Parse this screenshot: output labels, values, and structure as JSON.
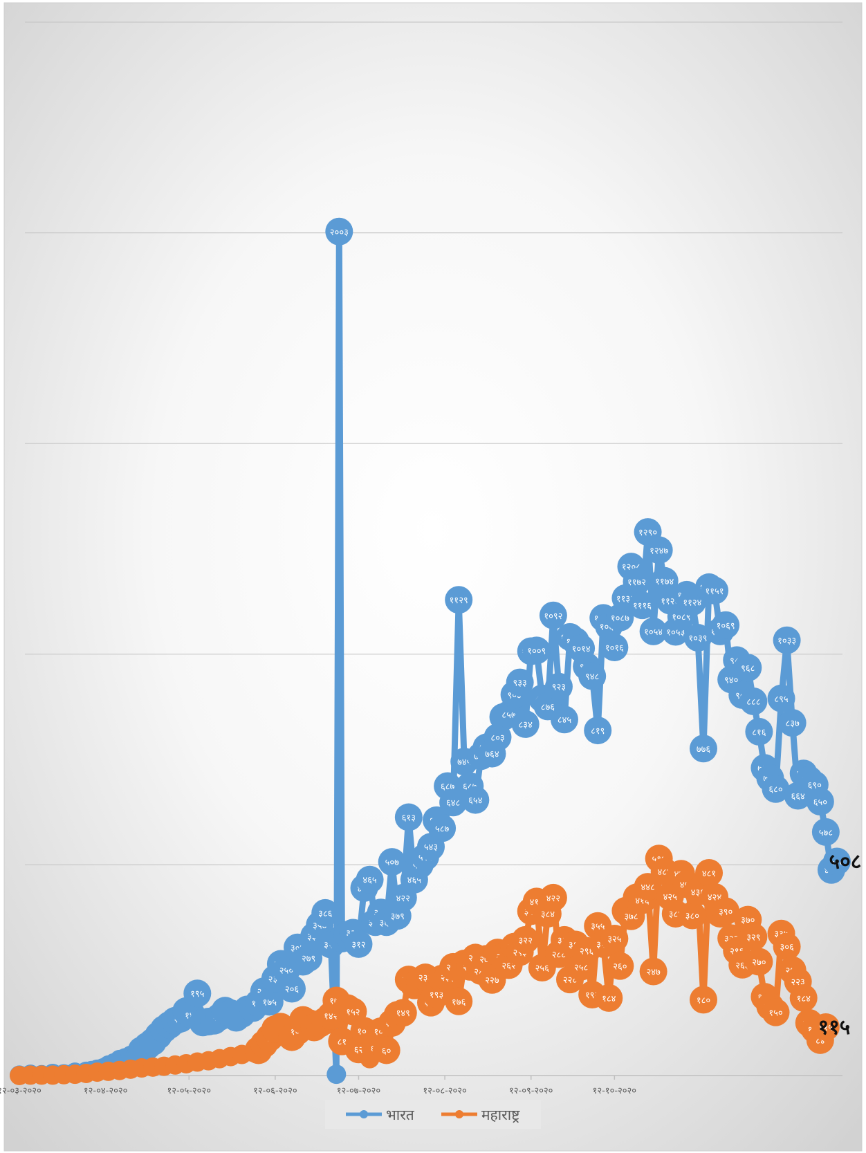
{
  "chart_data": {
    "type": "line",
    "title": "",
    "xlabel": "",
    "ylabel": "",
    "ylim": [
      0,
      2500
    ],
    "x_ticks": [
      "१२-०३-२०२०",
      "१२-०४-२०२०",
      "१२-०५-२०२०",
      "१२-०६-२०२०",
      "१२-०७-२०२०",
      "१२-०८-२०२०",
      "१२-०९-२०२०",
      "१२-१०-२०२०"
    ],
    "grid": true,
    "legend_position": "bottom",
    "series": [
      {
        "name": "भारत",
        "color": "#5b9bd5",
        "points": [
          [
            0,
            1
          ],
          [
            4,
            3
          ],
          [
            8,
            2
          ],
          [
            12,
            5
          ],
          [
            16,
            4
          ],
          [
            20,
            8
          ],
          [
            24,
            10
          ],
          [
            26,
            12
          ],
          [
            28,
            15
          ],
          [
            30,
            18
          ],
          [
            32,
            25
          ],
          [
            34,
            30
          ],
          [
            36,
            38
          ],
          [
            38,
            42
          ],
          [
            40,
            48
          ],
          [
            42,
            55
          ],
          [
            44,
            60
          ],
          [
            46,
            70
          ],
          [
            48,
            80
          ],
          [
            50,
            95
          ],
          [
            52,
            110
          ],
          [
            54,
            120
          ],
          [
            56,
            130
          ],
          [
            58,
            135
          ],
          [
            60,
            153
          ],
          [
            62,
            144
          ],
          [
            64,
            195
          ],
          [
            66,
            126
          ],
          [
            68,
            128
          ],
          [
            70,
            130
          ],
          [
            72,
            139
          ],
          [
            74,
            154
          ],
          [
            76,
            148
          ],
          [
            78,
            137
          ],
          [
            80,
            146
          ],
          [
            82,
            157
          ],
          [
            84,
            160
          ],
          [
            86,
            172
          ],
          [
            88,
            200
          ],
          [
            90,
            175
          ],
          [
            92,
            230
          ],
          [
            94,
            265
          ],
          [
            96,
            250
          ],
          [
            98,
            206
          ],
          [
            100,
            304
          ],
          [
            102,
            270
          ],
          [
            104,
            279
          ],
          [
            106,
            331
          ],
          [
            108,
            357
          ],
          [
            110,
            386
          ],
          [
            112,
            311
          ],
          [
            114,
            3
          ],
          [
            115,
            2003
          ],
          [
            116,
            325
          ],
          [
            118,
            334
          ],
          [
            120,
            339
          ],
          [
            122,
            312
          ],
          [
            124,
            445
          ],
          [
            126,
            465
          ],
          [
            128,
            364
          ],
          [
            130,
            387
          ],
          [
            132,
            364
          ],
          [
            134,
            507
          ],
          [
            136,
            379
          ],
          [
            138,
            422
          ],
          [
            140,
            613
          ],
          [
            142,
            465
          ],
          [
            144,
            500
          ],
          [
            146,
            519
          ],
          [
            148,
            543
          ],
          [
            150,
            606
          ],
          [
            152,
            587
          ],
          [
            154,
            687
          ],
          [
            156,
            648
          ],
          [
            158,
            1129
          ],
          [
            160,
            745
          ],
          [
            162,
            687
          ],
          [
            164,
            654
          ],
          [
            166,
            758
          ],
          [
            168,
            779
          ],
          [
            170,
            764
          ],
          [
            172,
            803
          ],
          [
            174,
            851
          ],
          [
            176,
            857
          ],
          [
            178,
            904
          ],
          [
            180,
            933
          ],
          [
            182,
            834
          ],
          [
            184,
            1007
          ],
          [
            186,
            1009
          ],
          [
            188,
            895
          ],
          [
            190,
            876
          ],
          [
            192,
            1092
          ],
          [
            194,
            923
          ],
          [
            196,
            845
          ],
          [
            198,
            1041
          ],
          [
            200,
            1031
          ],
          [
            202,
            1014
          ],
          [
            204,
            971
          ],
          [
            206,
            948
          ],
          [
            208,
            819
          ],
          [
            210,
            1086
          ],
          [
            212,
            1066
          ],
          [
            214,
            1016
          ],
          [
            216,
            1087
          ],
          [
            218,
            1133
          ],
          [
            220,
            1208
          ],
          [
            222,
            1172
          ],
          [
            224,
            1116
          ],
          [
            226,
            1290
          ],
          [
            228,
            1054
          ],
          [
            230,
            1247
          ],
          [
            232,
            1174
          ],
          [
            234,
            1127
          ],
          [
            236,
            1053
          ],
          [
            238,
            1089
          ],
          [
            240,
            1141
          ],
          [
            242,
            1124
          ],
          [
            244,
            1039
          ],
          [
            246,
            776
          ],
          [
            248,
            1159
          ],
          [
            250,
            1151
          ],
          [
            252,
            1054
          ],
          [
            254,
            1069
          ],
          [
            256,
            940
          ],
          [
            258,
            986
          ],
          [
            260,
            903
          ],
          [
            262,
            968
          ],
          [
            264,
            888
          ],
          [
            266,
            816
          ],
          [
            268,
            730
          ],
          [
            270,
            706
          ],
          [
            272,
            680
          ],
          [
            274,
            895
          ],
          [
            276,
            1033
          ],
          [
            278,
            837
          ],
          [
            280,
            664
          ],
          [
            282,
            717
          ],
          [
            284,
            702
          ],
          [
            286,
            690
          ],
          [
            288,
            650
          ],
          [
            290,
            578
          ],
          [
            292,
            488
          ],
          [
            294,
            508
          ]
        ]
      },
      {
        "name": "महाराष्ट्र",
        "color": "#ed7d31",
        "points": [
          [
            0,
            0
          ],
          [
            4,
            1
          ],
          [
            8,
            1
          ],
          [
            12,
            1
          ],
          [
            16,
            2
          ],
          [
            20,
            3
          ],
          [
            24,
            5
          ],
          [
            28,
            8
          ],
          [
            32,
            10
          ],
          [
            36,
            12
          ],
          [
            40,
            15
          ],
          [
            44,
            18
          ],
          [
            48,
            20
          ],
          [
            52,
            22
          ],
          [
            56,
            25
          ],
          [
            60,
            28
          ],
          [
            64,
            32
          ],
          [
            68,
            35
          ],
          [
            72,
            40
          ],
          [
            76,
            45
          ],
          [
            80,
            50
          ],
          [
            84,
            55
          ],
          [
            86,
            60
          ],
          [
            88,
            75
          ],
          [
            90,
            90
          ],
          [
            92,
            110
          ],
          [
            94,
            116
          ],
          [
            96,
            103
          ],
          [
            98,
            91
          ],
          [
            100,
            105
          ],
          [
            102,
            132
          ],
          [
            104,
            125
          ],
          [
            106,
            114
          ],
          [
            108,
            123
          ],
          [
            110,
            130
          ],
          [
            112,
            142
          ],
          [
            114,
            178
          ],
          [
            116,
            81
          ],
          [
            118,
            160
          ],
          [
            120,
            152
          ],
          [
            122,
            62
          ],
          [
            124,
            106
          ],
          [
            126,
            40
          ],
          [
            128,
            65
          ],
          [
            130,
            105
          ],
          [
            132,
            60
          ],
          [
            134,
            125
          ],
          [
            136,
            144
          ],
          [
            138,
            149
          ],
          [
            140,
            228
          ],
          [
            142,
            214
          ],
          [
            144,
            222
          ],
          [
            146,
            233
          ],
          [
            148,
            173
          ],
          [
            150,
            193
          ],
          [
            152,
            230
          ],
          [
            154,
            233
          ],
          [
            156,
            258
          ],
          [
            158,
            176
          ],
          [
            160,
            266
          ],
          [
            162,
            258
          ],
          [
            164,
            280
          ],
          [
            166,
            248
          ],
          [
            168,
            277
          ],
          [
            170,
            227
          ],
          [
            172,
            292
          ],
          [
            174,
            282
          ],
          [
            176,
            262
          ],
          [
            178,
            306
          ],
          [
            180,
            293
          ],
          [
            182,
            322
          ],
          [
            184,
            390
          ],
          [
            186,
            413
          ],
          [
            188,
            256
          ],
          [
            190,
            384
          ],
          [
            192,
            422
          ],
          [
            194,
            288
          ],
          [
            196,
            322
          ],
          [
            198,
            228
          ],
          [
            200,
            311
          ],
          [
            202,
            258
          ],
          [
            204,
            296
          ],
          [
            206,
            192
          ],
          [
            208,
            355
          ],
          [
            210,
            312
          ],
          [
            212,
            184
          ],
          [
            214,
            325
          ],
          [
            216,
            260
          ],
          [
            218,
            391
          ],
          [
            220,
            378
          ],
          [
            222,
            423
          ],
          [
            224,
            416
          ],
          [
            226,
            448
          ],
          [
            228,
            247
          ],
          [
            230,
            515
          ],
          [
            232,
            484
          ],
          [
            234,
            425
          ],
          [
            236,
            384
          ],
          [
            238,
            479
          ],
          [
            240,
            454
          ],
          [
            242,
            380
          ],
          [
            244,
            436
          ],
          [
            246,
            180
          ],
          [
            248,
            481
          ],
          [
            250,
            424
          ],
          [
            252,
            384
          ],
          [
            254,
            390
          ],
          [
            256,
            326
          ],
          [
            258,
            296
          ],
          [
            260,
            263
          ],
          [
            262,
            370
          ],
          [
            264,
            329
          ],
          [
            266,
            270
          ],
          [
            268,
            187
          ],
          [
            270,
            164
          ],
          [
            272,
            150
          ],
          [
            274,
            337
          ],
          [
            276,
            306
          ],
          [
            278,
            250
          ],
          [
            280,
            223
          ],
          [
            282,
            184
          ],
          [
            284,
            125
          ],
          [
            286,
            110
          ],
          [
            288,
            84
          ],
          [
            290,
            115
          ]
        ]
      }
    ],
    "last_labels": [
      {
        "series": "भारत",
        "text": "५०८"
      },
      {
        "series": "महाराष्ट्र",
        "text": "११५"
      }
    ]
  }
}
